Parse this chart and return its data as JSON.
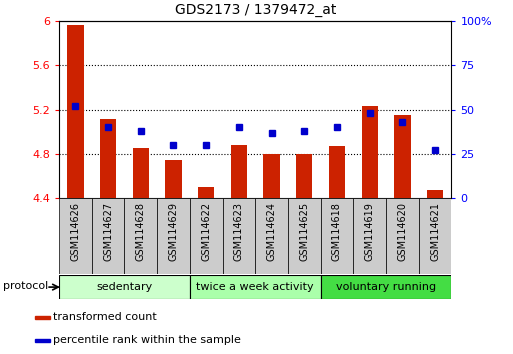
{
  "title": "GDS2173 / 1379472_at",
  "samples": [
    "GSM114626",
    "GSM114627",
    "GSM114628",
    "GSM114629",
    "GSM114622",
    "GSM114623",
    "GSM114624",
    "GSM114625",
    "GSM114618",
    "GSM114619",
    "GSM114620",
    "GSM114621"
  ],
  "transformed_count": [
    5.97,
    5.12,
    4.85,
    4.75,
    4.5,
    4.88,
    4.8,
    4.8,
    4.87,
    5.23,
    5.15,
    4.47
  ],
  "percentile_rank": [
    52,
    40,
    38,
    30,
    30,
    40,
    37,
    38,
    40,
    48,
    43,
    27
  ],
  "ylim_left": [
    4.4,
    6.0
  ],
  "ylim_right": [
    0,
    100
  ],
  "yticks_left": [
    4.4,
    4.8,
    5.2,
    5.6,
    6.0
  ],
  "yticks_right": [
    0,
    25,
    50,
    75,
    100
  ],
  "ytick_labels_left": [
    "4.4",
    "4.8",
    "5.2",
    "5.6",
    "6"
  ],
  "ytick_labels_right": [
    "0",
    "25",
    "50",
    "75",
    "100%"
  ],
  "bar_color": "#cc2200",
  "dot_color": "#0000cc",
  "bar_bottom": 4.4,
  "groups": [
    {
      "label": "sedentary",
      "start": 0,
      "end": 4,
      "color": "#ccffcc"
    },
    {
      "label": "twice a week activity",
      "start": 4,
      "end": 8,
      "color": "#aaffaa"
    },
    {
      "label": "voluntary running",
      "start": 8,
      "end": 12,
      "color": "#44dd44"
    }
  ],
  "protocol_label": "protocol",
  "legend_items": [
    {
      "color": "#cc2200",
      "label": "transformed count"
    },
    {
      "color": "#0000cc",
      "label": "percentile rank within the sample"
    }
  ],
  "background_color": "#ffffff",
  "bar_width": 0.5,
  "sample_box_color": "#cccccc",
  "grid_yticks": [
    4.8,
    5.2,
    5.6
  ]
}
